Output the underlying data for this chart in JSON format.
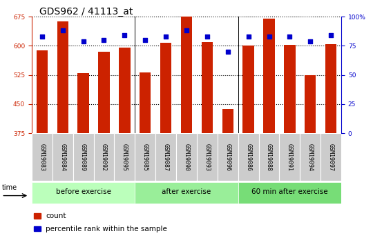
{
  "title": "GDS962 / 41113_at",
  "samples": [
    "GSM19083",
    "GSM19084",
    "GSM19089",
    "GSM19092",
    "GSM19095",
    "GSM19085",
    "GSM19087",
    "GSM19090",
    "GSM19093",
    "GSM19096",
    "GSM19086",
    "GSM19088",
    "GSM19091",
    "GSM19094",
    "GSM19097"
  ],
  "count_values": [
    588,
    663,
    530,
    585,
    595,
    532,
    607,
    675,
    610,
    437,
    601,
    670,
    602,
    525,
    605
  ],
  "percentile_values": [
    83,
    88,
    79,
    80,
    84,
    80,
    83,
    88,
    83,
    70,
    83,
    83,
    83,
    79,
    84
  ],
  "groups": [
    {
      "label": "before exercise",
      "start": 0,
      "end": 5,
      "color": "#bbffbb"
    },
    {
      "label": "after exercise",
      "start": 5,
      "end": 10,
      "color": "#99ee99"
    },
    {
      "label": "60 min after exercise",
      "start": 10,
      "end": 15,
      "color": "#77dd77"
    }
  ],
  "ylim_left": [
    375,
    675
  ],
  "ylim_right": [
    0,
    100
  ],
  "yticks_left": [
    375,
    450,
    525,
    600,
    675
  ],
  "yticks_right": [
    0,
    25,
    50,
    75,
    100
  ],
  "bar_color": "#cc2200",
  "dot_color": "#0000cc",
  "bar_width": 0.55,
  "bg_color": "#ffffff",
  "left_tick_color": "#cc2200",
  "right_tick_color": "#0000cc",
  "title_fontsize": 10,
  "tick_fontsize": 6.5,
  "sample_fontsize": 6,
  "label_fontsize": 7.5,
  "legend_fontsize": 7.5,
  "group_separator_color": "#000000",
  "grid_linestyle": "dotted",
  "grid_linewidth": 0.8,
  "sample_bg_color": "#cccccc",
  "sample_border_color": "#ffffff"
}
